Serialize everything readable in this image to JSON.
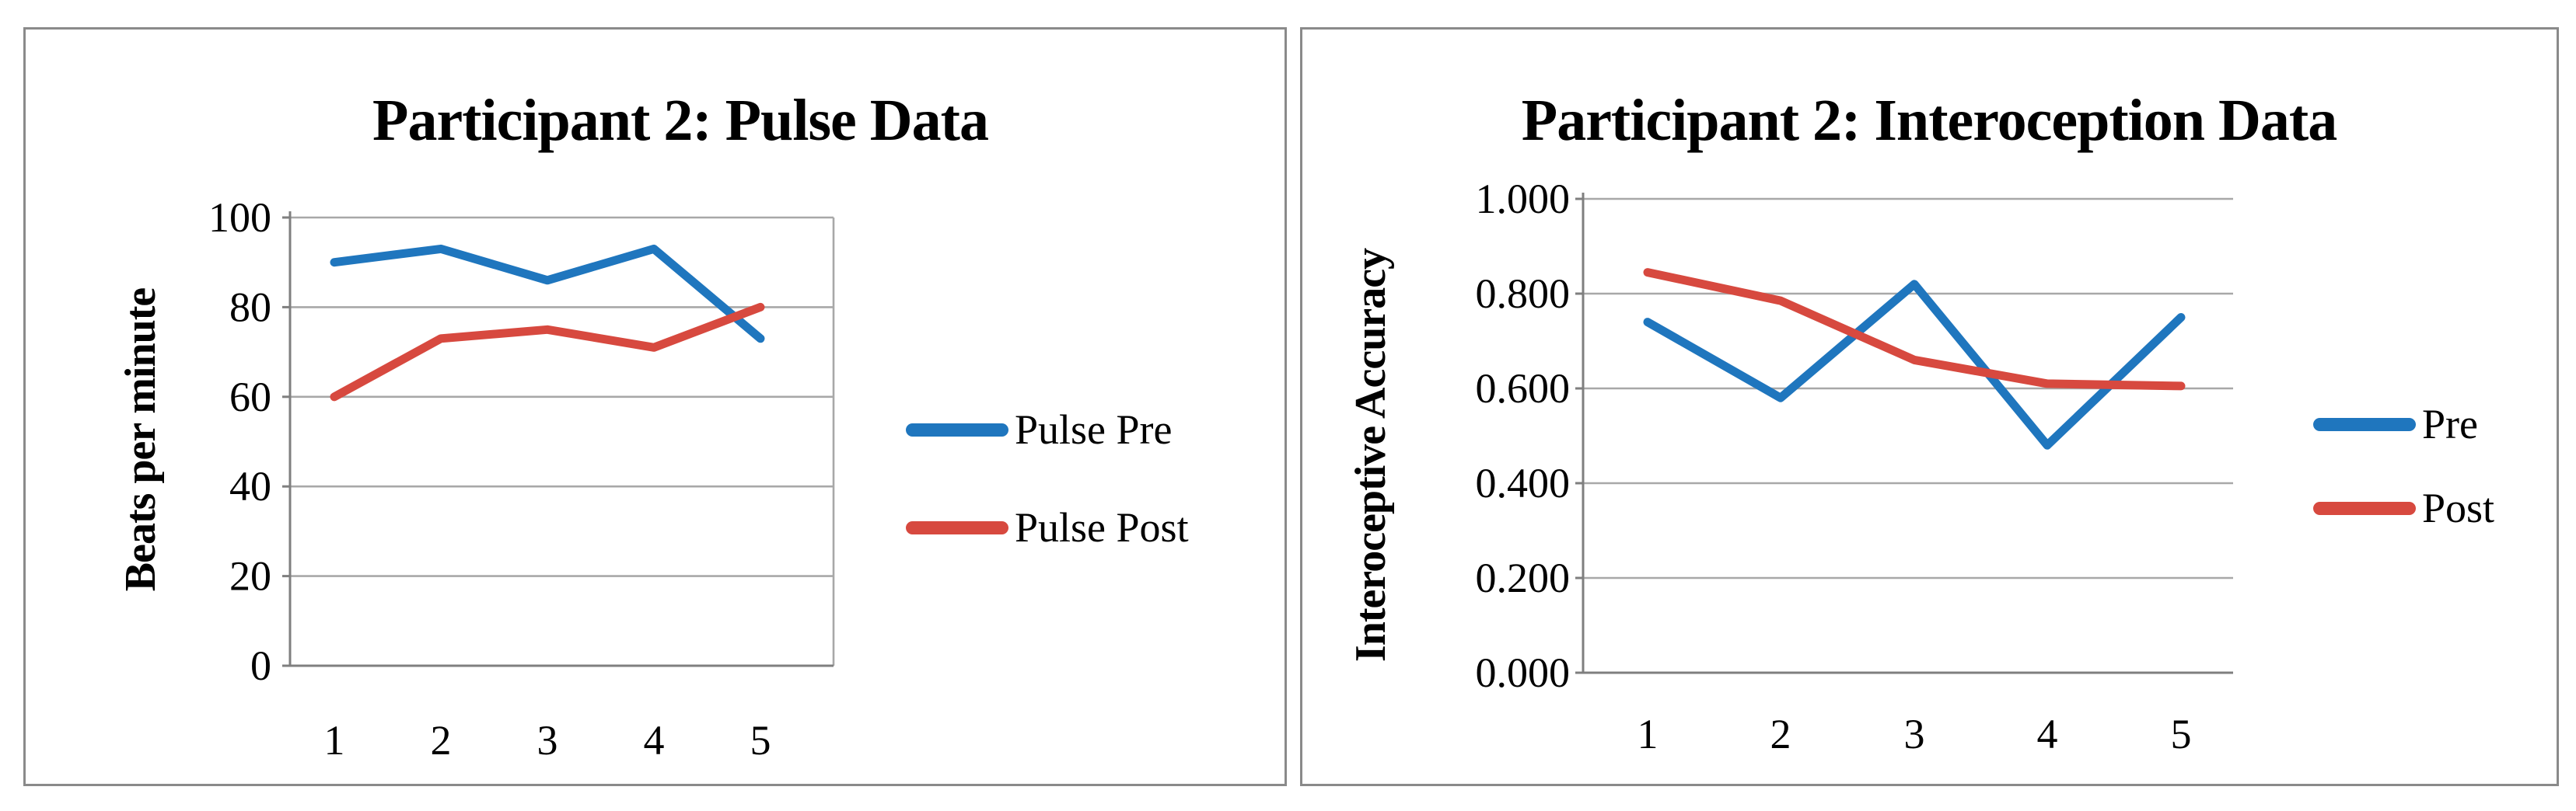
{
  "colors": {
    "grid": "#a8a8a8",
    "axis": "#7f7f7f",
    "panel_border": "#8a8a8a",
    "series_blue": "#1f76be",
    "series_red": "#d7493f",
    "text": "#000000"
  },
  "chart_data": [
    {
      "type": "line",
      "title": "Participant 2: Pulse Data",
      "xlabel": "",
      "ylabel": "Beats per minute",
      "categories": [
        "1",
        "2",
        "3",
        "4",
        "5"
      ],
      "series": [
        {
          "name": "Pulse Pre",
          "color": "#1f76be",
          "values": [
            90,
            93,
            86,
            93,
            73
          ]
        },
        {
          "name": "Pulse Post",
          "color": "#d7493f",
          "values": [
            60,
            73,
            75,
            71,
            80
          ]
        }
      ],
      "ylim": [
        0,
        100
      ],
      "ytick_values": [
        0,
        20,
        40,
        60,
        80,
        100
      ],
      "ytick_labels": [
        "0",
        "20",
        "40",
        "60",
        "80",
        "100"
      ],
      "grid": true,
      "legend_position": "right"
    },
    {
      "type": "line",
      "title": "Participant 2: Interoception Data",
      "xlabel": "",
      "ylabel": "Interoceptive Accuracy",
      "categories": [
        "1",
        "2",
        "3",
        "4",
        "5"
      ],
      "series": [
        {
          "name": "Pre",
          "color": "#1f76be",
          "values": [
            0.74,
            0.58,
            0.82,
            0.48,
            0.75
          ]
        },
        {
          "name": "Post",
          "color": "#d7493f",
          "values": [
            0.845,
            0.785,
            0.66,
            0.61,
            0.605
          ]
        }
      ],
      "ylim": [
        0,
        1
      ],
      "ytick_values": [
        0,
        0.2,
        0.4,
        0.6,
        0.8,
        1.0
      ],
      "ytick_labels": [
        "0.000",
        "0.200",
        "0.400",
        "0.600",
        "0.800",
        "1.000"
      ],
      "grid": true,
      "legend_position": "right"
    }
  ]
}
